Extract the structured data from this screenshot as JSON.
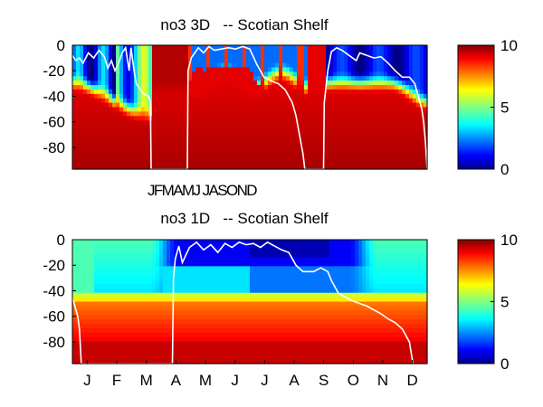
{
  "chart_data": [
    {
      "type": "heatmap",
      "title": "no3 3D   -- Scotian Shelf",
      "yticks": [
        "0",
        "-20",
        "-40",
        "-60",
        "-80"
      ],
      "yrange": [
        -97,
        0
      ],
      "xtick_text": "JFMAMJ JASOND",
      "colorbar": {
        "ticks": [
          "10",
          "5",
          "0"
        ],
        "range": [
          0,
          10
        ]
      },
      "mixed_layer": [
        {
          "t": 0.0,
          "d": -8
        },
        {
          "t": 0.01,
          "d": -12
        },
        {
          "t": 0.02,
          "d": -10
        },
        {
          "t": 0.03,
          "d": -14
        },
        {
          "t": 0.045,
          "d": -6
        },
        {
          "t": 0.06,
          "d": -10
        },
        {
          "t": 0.075,
          "d": -4
        },
        {
          "t": 0.09,
          "d": -9
        },
        {
          "t": 0.1,
          "d": -18
        },
        {
          "t": 0.11,
          "d": -12
        },
        {
          "t": 0.12,
          "d": -20
        },
        {
          "t": 0.13,
          "d": -14
        },
        {
          "t": 0.14,
          "d": -6
        },
        {
          "t": 0.15,
          "d": -2
        },
        {
          "t": 0.16,
          "d": -20
        },
        {
          "t": 0.165,
          "d": -2
        },
        {
          "t": 0.175,
          "d": -22
        },
        {
          "t": 0.18,
          "d": -30
        },
        {
          "t": 0.19,
          "d": -34
        },
        {
          "t": 0.2,
          "d": -38
        },
        {
          "t": 0.215,
          "d": -40
        },
        {
          "t": 0.22,
          "d": -44
        },
        {
          "t": 0.222,
          "d": -97
        },
        {
          "t": 0.324,
          "d": -97
        },
        {
          "t": 0.326,
          "d": -20
        },
        {
          "t": 0.335,
          "d": -10
        },
        {
          "t": 0.345,
          "d": -6
        },
        {
          "t": 0.355,
          "d": -2
        },
        {
          "t": 0.37,
          "d": -6
        },
        {
          "t": 0.385,
          "d": -1
        },
        {
          "t": 0.4,
          "d": -4
        },
        {
          "t": 0.42,
          "d": -3
        },
        {
          "t": 0.44,
          "d": -2
        },
        {
          "t": 0.46,
          "d": -3
        },
        {
          "t": 0.48,
          "d": -1
        },
        {
          "t": 0.5,
          "d": -3
        },
        {
          "t": 0.52,
          "d": -15
        },
        {
          "t": 0.54,
          "d": -25
        },
        {
          "t": 0.56,
          "d": -28
        },
        {
          "t": 0.58,
          "d": -30
        },
        {
          "t": 0.6,
          "d": -35
        },
        {
          "t": 0.62,
          "d": -45
        },
        {
          "t": 0.63,
          "d": -55
        },
        {
          "t": 0.64,
          "d": -70
        },
        {
          "t": 0.65,
          "d": -85
        },
        {
          "t": 0.655,
          "d": -97
        },
        {
          "t": 0.708,
          "d": -97
        },
        {
          "t": 0.71,
          "d": -45
        },
        {
          "t": 0.72,
          "d": -20
        },
        {
          "t": 0.73,
          "d": -5
        },
        {
          "t": 0.745,
          "d": -2
        },
        {
          "t": 0.76,
          "d": -4
        },
        {
          "t": 0.78,
          "d": -8
        },
        {
          "t": 0.8,
          "d": -12
        },
        {
          "t": 0.81,
          "d": -6
        },
        {
          "t": 0.83,
          "d": -8
        },
        {
          "t": 0.85,
          "d": -10
        },
        {
          "t": 0.87,
          "d": -9
        },
        {
          "t": 0.89,
          "d": -14
        },
        {
          "t": 0.91,
          "d": -20
        },
        {
          "t": 0.93,
          "d": -25
        },
        {
          "t": 0.95,
          "d": -25
        },
        {
          "t": 0.965,
          "d": -30
        },
        {
          "t": 0.975,
          "d": -40
        },
        {
          "t": 0.985,
          "d": -50
        },
        {
          "t": 0.99,
          "d": -60
        },
        {
          "t": 0.995,
          "d": -75
        },
        {
          "t": 1.0,
          "d": -97
        }
      ]
    },
    {
      "type": "heatmap",
      "title": "no3 1D   -- Scotian Shelf",
      "yticks": [
        "0",
        "-20",
        "-40",
        "-60",
        "-80"
      ],
      "yrange": [
        -97,
        0
      ],
      "xticks": [
        "J",
        "F",
        "M",
        "A",
        "M",
        "J",
        "J",
        "A",
        "S",
        "O",
        "N",
        "D"
      ],
      "colorbar": {
        "ticks": [
          "10",
          "5",
          "0"
        ],
        "range": [
          0,
          10
        ]
      },
      "mixed_layer": [
        {
          "t": 0.0,
          "d": -45
        },
        {
          "t": 0.01,
          "d": -55
        },
        {
          "t": 0.015,
          "d": -60
        },
        {
          "t": 0.02,
          "d": -70
        },
        {
          "t": 0.025,
          "d": -97
        },
        {
          "t": 0.282,
          "d": -97
        },
        {
          "t": 0.285,
          "d": -30
        },
        {
          "t": 0.29,
          "d": -15
        },
        {
          "t": 0.3,
          "d": -5
        },
        {
          "t": 0.31,
          "d": -18
        },
        {
          "t": 0.32,
          "d": -12
        },
        {
          "t": 0.33,
          "d": -6
        },
        {
          "t": 0.35,
          "d": -2
        },
        {
          "t": 0.37,
          "d": -8
        },
        {
          "t": 0.39,
          "d": -4
        },
        {
          "t": 0.41,
          "d": -10
        },
        {
          "t": 0.43,
          "d": -3
        },
        {
          "t": 0.45,
          "d": -6
        },
        {
          "t": 0.47,
          "d": -2
        },
        {
          "t": 0.49,
          "d": -4
        },
        {
          "t": 0.51,
          "d": -3
        },
        {
          "t": 0.53,
          "d": -6
        },
        {
          "t": 0.55,
          "d": -2
        },
        {
          "t": 0.57,
          "d": -5
        },
        {
          "t": 0.59,
          "d": -8
        },
        {
          "t": 0.61,
          "d": -10
        },
        {
          "t": 0.63,
          "d": -20
        },
        {
          "t": 0.65,
          "d": -25
        },
        {
          "t": 0.68,
          "d": -25
        },
        {
          "t": 0.7,
          "d": -22
        },
        {
          "t": 0.72,
          "d": -25
        },
        {
          "t": 0.73,
          "d": -32
        },
        {
          "t": 0.75,
          "d": -42
        },
        {
          "t": 0.77,
          "d": -45
        },
        {
          "t": 0.79,
          "d": -48
        },
        {
          "t": 0.81,
          "d": -50
        },
        {
          "t": 0.83,
          "d": -52
        },
        {
          "t": 0.85,
          "d": -55
        },
        {
          "t": 0.87,
          "d": -58
        },
        {
          "t": 0.89,
          "d": -62
        },
        {
          "t": 0.91,
          "d": -65
        },
        {
          "t": 0.93,
          "d": -70
        },
        {
          "t": 0.95,
          "d": -80
        },
        {
          "t": 0.96,
          "d": -97
        }
      ]
    }
  ]
}
